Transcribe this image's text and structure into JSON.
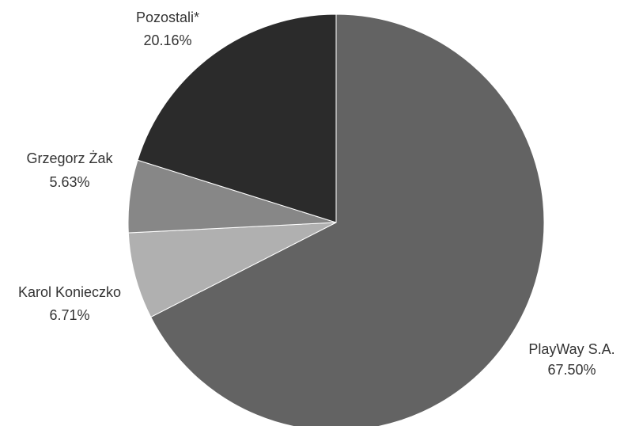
{
  "chart_data": {
    "type": "pie",
    "slices": [
      {
        "name": "PlayWay S.A.",
        "value": 67.5,
        "label_value": "67.50%",
        "color": "#636363"
      },
      {
        "name": "Karol Konieczko",
        "value": 6.71,
        "label_value": "6.71%",
        "color": "#b0b0b0"
      },
      {
        "name": "Grzegorz Żak",
        "value": 5.63,
        "label_value": "5.63%",
        "color": "#878787"
      },
      {
        "name": "Pozostali*",
        "value": 20.16,
        "label_value": "20.16%",
        "color": "#2b2b2b"
      }
    ],
    "start_angle_deg": 0,
    "direction": "clockwise",
    "legend": "none",
    "label_color": "#333333"
  }
}
